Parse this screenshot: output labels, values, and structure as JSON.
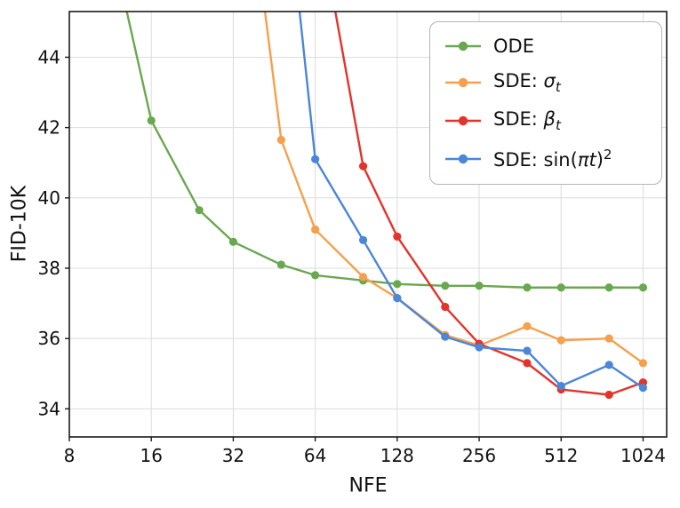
{
  "chart_data": {
    "type": "line",
    "title": "",
    "xlabel": "NFE",
    "ylabel": "FID-10K",
    "x_scale": "log2",
    "xlim": [
      8,
      1250
    ],
    "ylim": [
      33.2,
      45.3
    ],
    "x_ticks": [
      8,
      16,
      32,
      64,
      128,
      256,
      512,
      1024
    ],
    "y_ticks": [
      34,
      36,
      38,
      40,
      42,
      44
    ],
    "grid": true,
    "frame": true,
    "legend_position": "upper right",
    "style": {
      "grid_color": "#dcdcdc",
      "frame_color": "#1a1a1a",
      "text_color": "#111111",
      "line_width": 2.4,
      "marker_radius": 4.6
    },
    "series": [
      {
        "id": "ode",
        "label": "ODE",
        "label_parts": [
          {
            "text": "ODE"
          }
        ],
        "color": "#6aa84f",
        "x": [
          12,
          16,
          24,
          32,
          48,
          64,
          96,
          128,
          192,
          256,
          384,
          512,
          768,
          1024
        ],
        "y": [
          46.5,
          42.2,
          39.65,
          38.75,
          38.1,
          37.8,
          37.65,
          37.55,
          37.5,
          37.5,
          37.45,
          37.45,
          37.45,
          37.45
        ]
      },
      {
        "id": "sde-sigma",
        "label": "SDE: σ_t",
        "label_parts": [
          {
            "text": "SDE: "
          },
          {
            "text": "σ",
            "italic": true
          },
          {
            "text": "t",
            "italic": true,
            "sub": true
          }
        ],
        "color": "#f5a04c",
        "x": [
          40,
          48,
          64,
          96,
          128,
          192,
          256,
          384,
          512,
          768,
          1024
        ],
        "y": [
          46.5,
          41.65,
          39.1,
          37.75,
          37.15,
          36.1,
          35.8,
          36.35,
          35.95,
          36.0,
          35.3
        ]
      },
      {
        "id": "sde-beta",
        "label": "SDE: β_t",
        "label_parts": [
          {
            "text": "SDE: "
          },
          {
            "text": "β",
            "italic": true
          },
          {
            "text": "t",
            "italic": true,
            "sub": true
          }
        ],
        "color": "#e3342b",
        "x": [
          70,
          96,
          128,
          192,
          256,
          384,
          512,
          768,
          1024
        ],
        "y": [
          46.8,
          40.9,
          38.9,
          36.9,
          35.85,
          35.3,
          34.55,
          34.4,
          34.75
        ]
      },
      {
        "id": "sde-sin",
        "label": "SDE: sin(πt)²",
        "label_parts": [
          {
            "text": "SDE: "
          },
          {
            "text": "sin("
          },
          {
            "text": "π",
            "italic": true
          },
          {
            "text": "t",
            "italic": true
          },
          {
            "text": ")"
          },
          {
            "text": "2",
            "sup": true
          }
        ],
        "color": "#4b86d8",
        "x": [
          54,
          64,
          96,
          128,
          192,
          256,
          384,
          512,
          768,
          1024
        ],
        "y": [
          46.5,
          41.1,
          38.8,
          37.15,
          36.05,
          35.75,
          35.65,
          34.65,
          35.25,
          34.6
        ]
      }
    ]
  }
}
